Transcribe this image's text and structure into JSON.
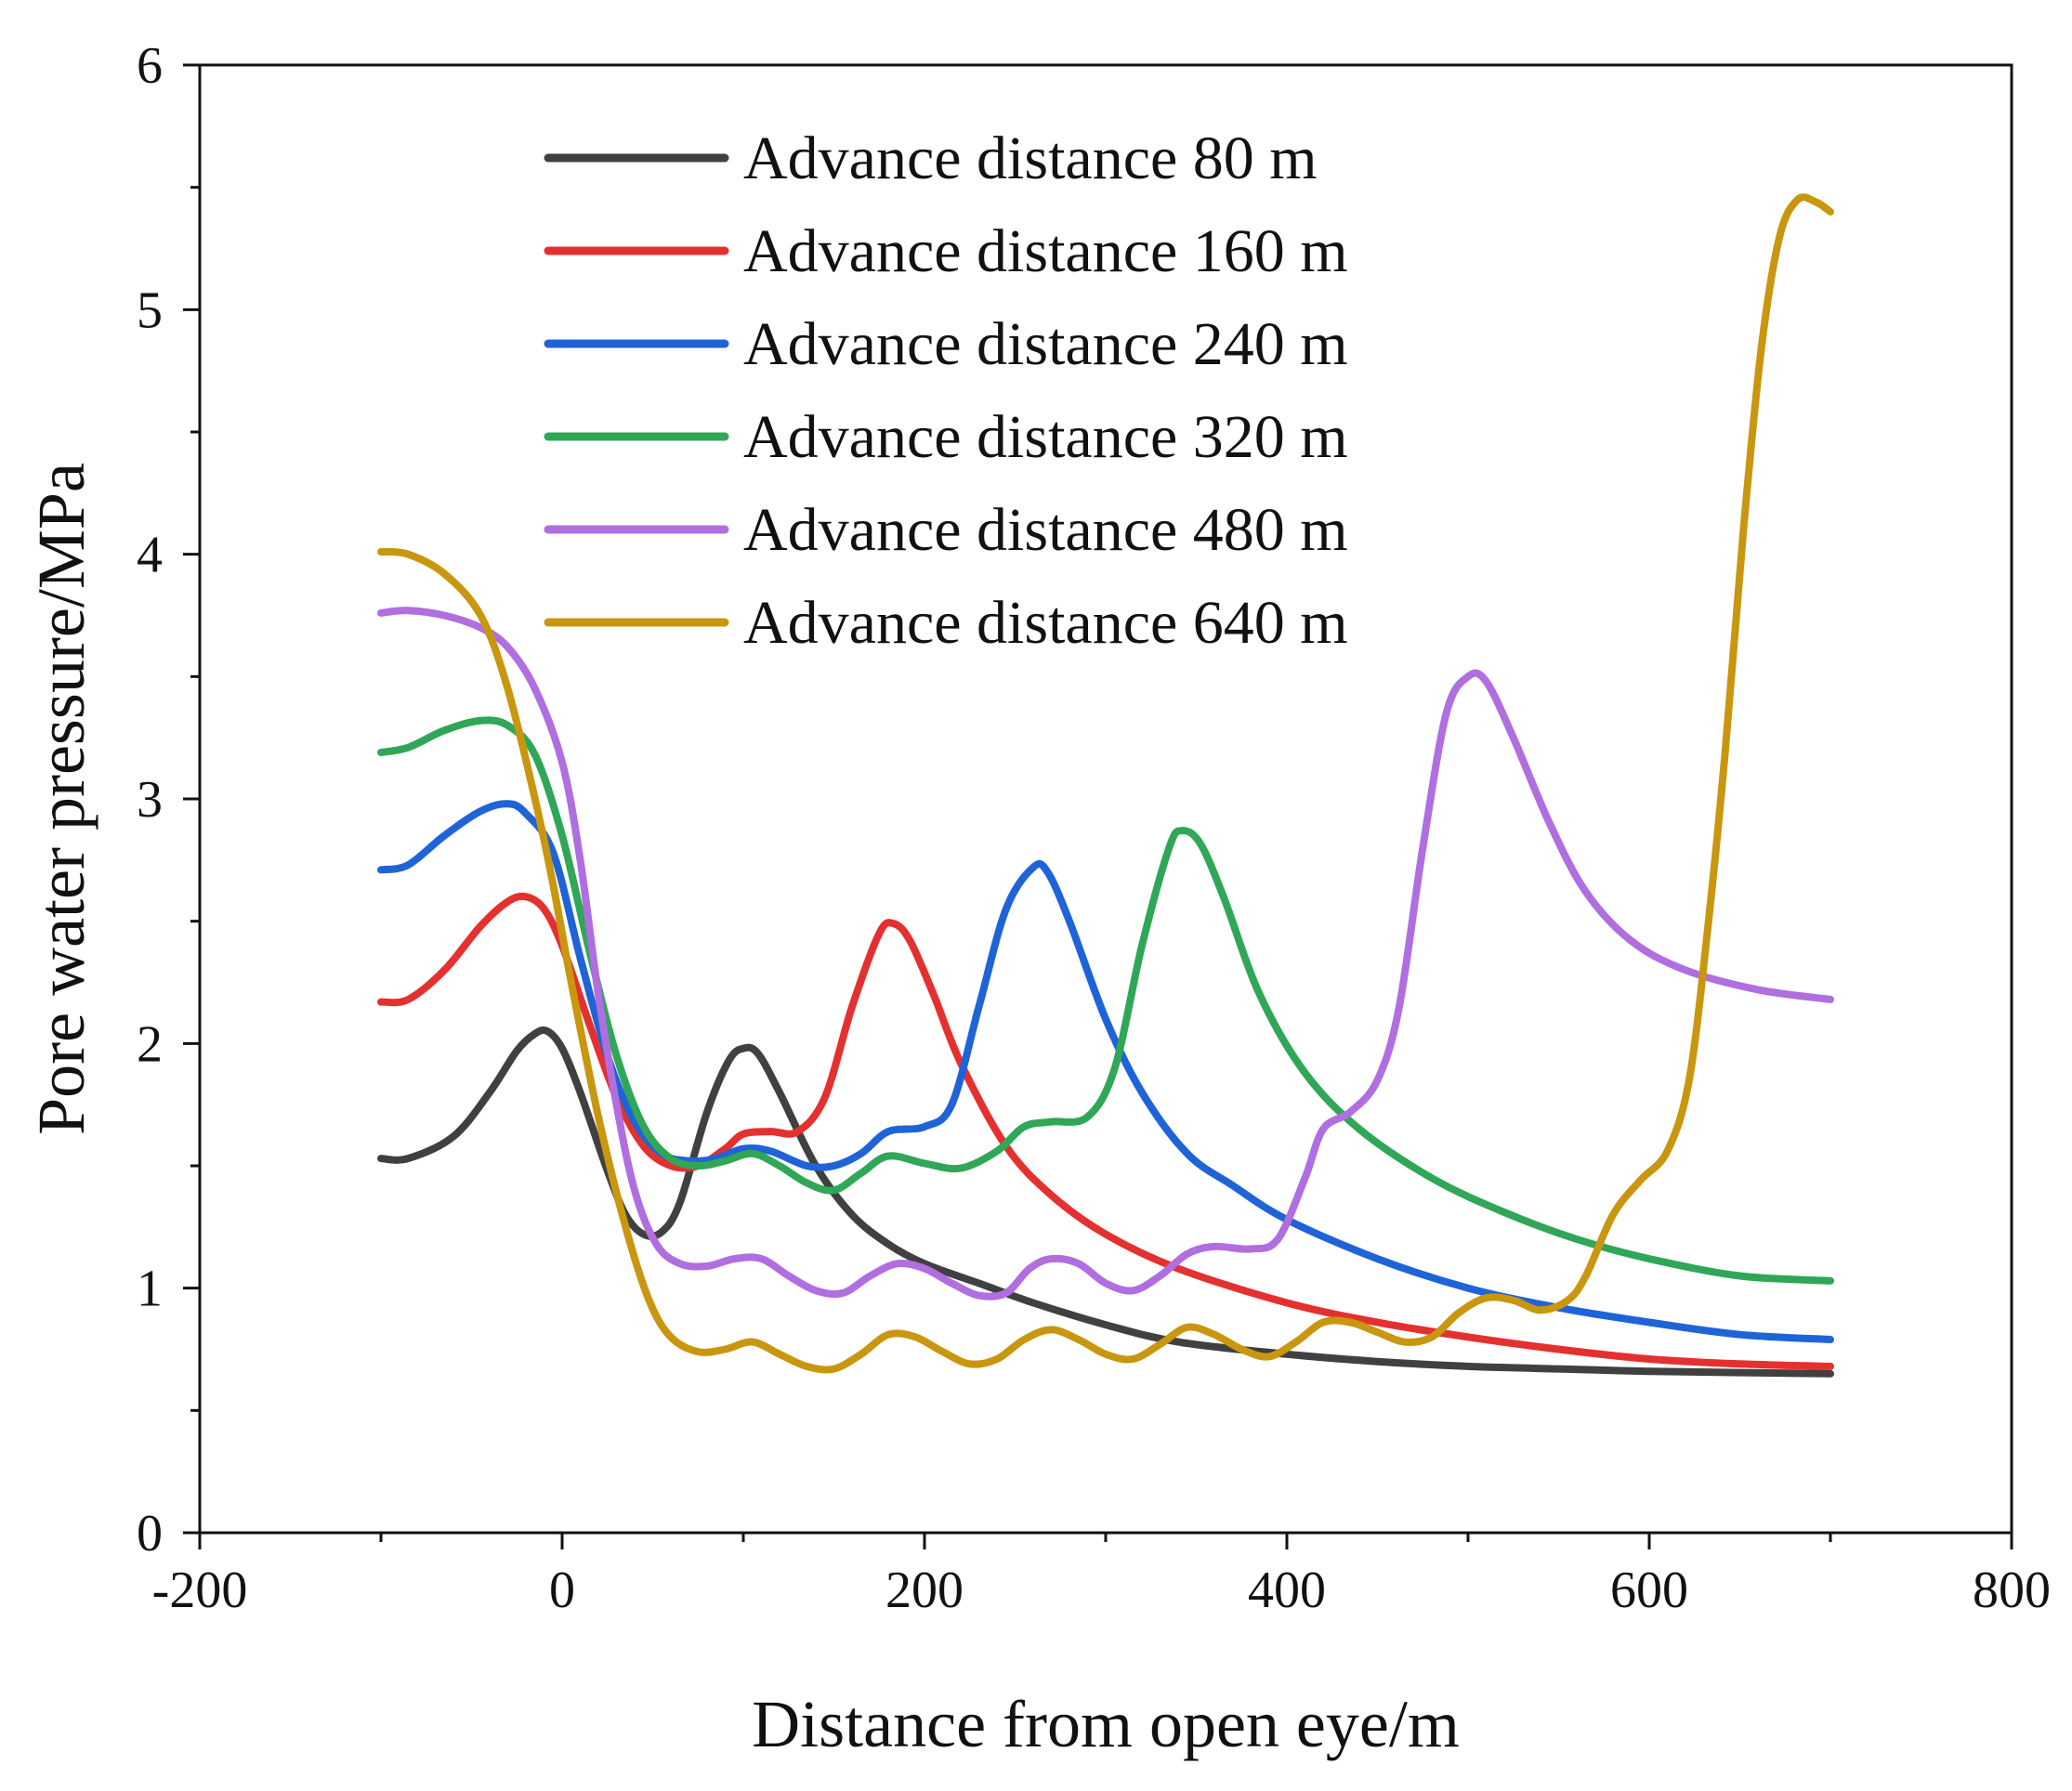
{
  "chart_data": {
    "type": "line",
    "title": "",
    "xlabel": "Distance from open eye/m",
    "ylabel": "Pore water pressure/MPa",
    "xlim": [
      -200,
      800
    ],
    "ylim": [
      0,
      6
    ],
    "xticks": [
      -200,
      0,
      200,
      400,
      600,
      800
    ],
    "yticks": [
      0,
      1,
      2,
      3,
      4,
      5,
      6
    ],
    "grid": false,
    "legend_position": "top-center",
    "series": [
      {
        "name": "Advance distance 80 m",
        "color": "#404040",
        "points": [
          [
            -100,
            1.53
          ],
          [
            -85,
            1.53
          ],
          [
            -60,
            1.62
          ],
          [
            -40,
            1.8
          ],
          [
            -25,
            1.97
          ],
          [
            -15,
            2.04
          ],
          [
            -8,
            2.05
          ],
          [
            0,
            1.98
          ],
          [
            10,
            1.8
          ],
          [
            25,
            1.48
          ],
          [
            35,
            1.3
          ],
          [
            45,
            1.22
          ],
          [
            55,
            1.23
          ],
          [
            65,
            1.35
          ],
          [
            80,
            1.72
          ],
          [
            92,
            1.93
          ],
          [
            100,
            1.98
          ],
          [
            108,
            1.96
          ],
          [
            120,
            1.8
          ],
          [
            140,
            1.5
          ],
          [
            160,
            1.3
          ],
          [
            180,
            1.18
          ],
          [
            200,
            1.1
          ],
          [
            230,
            1.02
          ],
          [
            260,
            0.94
          ],
          [
            300,
            0.85
          ],
          [
            340,
            0.78
          ],
          [
            400,
            0.73
          ],
          [
            450,
            0.7
          ],
          [
            500,
            0.68
          ],
          [
            550,
            0.67
          ],
          [
            600,
            0.66
          ],
          [
            700,
            0.65
          ]
        ]
      },
      {
        "name": "Advance distance 160 m",
        "color": "#e53030",
        "points": [
          [
            -100,
            2.17
          ],
          [
            -85,
            2.18
          ],
          [
            -65,
            2.3
          ],
          [
            -45,
            2.48
          ],
          [
            -30,
            2.58
          ],
          [
            -20,
            2.6
          ],
          [
            -10,
            2.55
          ],
          [
            0,
            2.4
          ],
          [
            15,
            2.08
          ],
          [
            30,
            1.78
          ],
          [
            45,
            1.58
          ],
          [
            60,
            1.5
          ],
          [
            75,
            1.5
          ],
          [
            90,
            1.57
          ],
          [
            100,
            1.63
          ],
          [
            115,
            1.64
          ],
          [
            130,
            1.64
          ],
          [
            145,
            1.78
          ],
          [
            160,
            2.15
          ],
          [
            175,
            2.45
          ],
          [
            183,
            2.49
          ],
          [
            192,
            2.42
          ],
          [
            205,
            2.2
          ],
          [
            220,
            1.92
          ],
          [
            245,
            1.58
          ],
          [
            270,
            1.38
          ],
          [
            300,
            1.22
          ],
          [
            340,
            1.08
          ],
          [
            400,
            0.94
          ],
          [
            450,
            0.86
          ],
          [
            500,
            0.8
          ],
          [
            550,
            0.75
          ],
          [
            600,
            0.71
          ],
          [
            650,
            0.69
          ],
          [
            700,
            0.68
          ]
        ]
      },
      {
        "name": "Advance distance 240 m",
        "color": "#1f63d8",
        "points": [
          [
            -100,
            2.71
          ],
          [
            -85,
            2.73
          ],
          [
            -65,
            2.85
          ],
          [
            -45,
            2.95
          ],
          [
            -30,
            2.98
          ],
          [
            -20,
            2.94
          ],
          [
            -5,
            2.78
          ],
          [
            10,
            2.35
          ],
          [
            25,
            1.95
          ],
          [
            40,
            1.68
          ],
          [
            55,
            1.55
          ],
          [
            70,
            1.52
          ],
          [
            85,
            1.53
          ],
          [
            100,
            1.57
          ],
          [
            115,
            1.56
          ],
          [
            135,
            1.5
          ],
          [
            150,
            1.5
          ],
          [
            165,
            1.55
          ],
          [
            180,
            1.64
          ],
          [
            200,
            1.66
          ],
          [
            215,
            1.75
          ],
          [
            230,
            2.15
          ],
          [
            245,
            2.55
          ],
          [
            260,
            2.72
          ],
          [
            268,
            2.7
          ],
          [
            280,
            2.5
          ],
          [
            300,
            2.1
          ],
          [
            320,
            1.8
          ],
          [
            345,
            1.55
          ],
          [
            370,
            1.42
          ],
          [
            400,
            1.28
          ],
          [
            450,
            1.12
          ],
          [
            500,
            1.0
          ],
          [
            550,
            0.92
          ],
          [
            600,
            0.86
          ],
          [
            650,
            0.81
          ],
          [
            700,
            0.79
          ]
        ]
      },
      {
        "name": "Advance distance 320 m",
        "color": "#2fa757",
        "points": [
          [
            -100,
            3.19
          ],
          [
            -85,
            3.21
          ],
          [
            -65,
            3.28
          ],
          [
            -45,
            3.32
          ],
          [
            -30,
            3.3
          ],
          [
            -15,
            3.18
          ],
          [
            0,
            2.85
          ],
          [
            15,
            2.38
          ],
          [
            30,
            1.95
          ],
          [
            45,
            1.66
          ],
          [
            60,
            1.53
          ],
          [
            75,
            1.5
          ],
          [
            90,
            1.52
          ],
          [
            105,
            1.55
          ],
          [
            120,
            1.5
          ],
          [
            135,
            1.43
          ],
          [
            150,
            1.4
          ],
          [
            165,
            1.47
          ],
          [
            180,
            1.54
          ],
          [
            200,
            1.51
          ],
          [
            220,
            1.49
          ],
          [
            240,
            1.56
          ],
          [
            255,
            1.66
          ],
          [
            270,
            1.68
          ],
          [
            290,
            1.7
          ],
          [
            305,
            1.9
          ],
          [
            320,
            2.4
          ],
          [
            335,
            2.8
          ],
          [
            342,
            2.87
          ],
          [
            352,
            2.82
          ],
          [
            365,
            2.6
          ],
          [
            385,
            2.2
          ],
          [
            410,
            1.88
          ],
          [
            440,
            1.65
          ],
          [
            480,
            1.45
          ],
          [
            520,
            1.31
          ],
          [
            560,
            1.2
          ],
          [
            600,
            1.12
          ],
          [
            650,
            1.05
          ],
          [
            700,
            1.03
          ]
        ]
      },
      {
        "name": "Advance distance 480 m",
        "color": "#b06ee0",
        "points": [
          [
            -100,
            3.76
          ],
          [
            -85,
            3.77
          ],
          [
            -65,
            3.75
          ],
          [
            -45,
            3.7
          ],
          [
            -30,
            3.62
          ],
          [
            -15,
            3.45
          ],
          [
            0,
            3.15
          ],
          [
            10,
            2.75
          ],
          [
            20,
            2.2
          ],
          [
            30,
            1.75
          ],
          [
            40,
            1.4
          ],
          [
            52,
            1.18
          ],
          [
            65,
            1.1
          ],
          [
            80,
            1.09
          ],
          [
            95,
            1.12
          ],
          [
            110,
            1.12
          ],
          [
            125,
            1.05
          ],
          [
            140,
            0.99
          ],
          [
            155,
            0.98
          ],
          [
            170,
            1.05
          ],
          [
            185,
            1.1
          ],
          [
            200,
            1.08
          ],
          [
            215,
            1.02
          ],
          [
            230,
            0.97
          ],
          [
            245,
            0.98
          ],
          [
            258,
            1.08
          ],
          [
            270,
            1.12
          ],
          [
            285,
            1.1
          ],
          [
            300,
            1.02
          ],
          [
            315,
            0.99
          ],
          [
            330,
            1.05
          ],
          [
            345,
            1.14
          ],
          [
            360,
            1.17
          ],
          [
            380,
            1.16
          ],
          [
            395,
            1.2
          ],
          [
            410,
            1.45
          ],
          [
            420,
            1.65
          ],
          [
            435,
            1.72
          ],
          [
            450,
            1.85
          ],
          [
            462,
            2.15
          ],
          [
            475,
            2.8
          ],
          [
            488,
            3.35
          ],
          [
            500,
            3.5
          ],
          [
            510,
            3.48
          ],
          [
            525,
            3.25
          ],
          [
            545,
            2.9
          ],
          [
            565,
            2.62
          ],
          [
            590,
            2.42
          ],
          [
            620,
            2.3
          ],
          [
            660,
            2.22
          ],
          [
            700,
            2.18
          ]
        ]
      },
      {
        "name": "Advance distance 640 m",
        "color": "#c8970f",
        "points": [
          [
            -100,
            4.01
          ],
          [
            -85,
            4.0
          ],
          [
            -65,
            3.92
          ],
          [
            -45,
            3.75
          ],
          [
            -30,
            3.45
          ],
          [
            -15,
            3.0
          ],
          [
            -5,
            2.65
          ],
          [
            5,
            2.25
          ],
          [
            20,
            1.7
          ],
          [
            35,
            1.25
          ],
          [
            48,
            0.95
          ],
          [
            60,
            0.8
          ],
          [
            75,
            0.74
          ],
          [
            90,
            0.75
          ],
          [
            105,
            0.78
          ],
          [
            120,
            0.73
          ],
          [
            135,
            0.68
          ],
          [
            150,
            0.67
          ],
          [
            165,
            0.73
          ],
          [
            180,
            0.81
          ],
          [
            195,
            0.8
          ],
          [
            210,
            0.74
          ],
          [
            225,
            0.69
          ],
          [
            240,
            0.71
          ],
          [
            255,
            0.79
          ],
          [
            270,
            0.83
          ],
          [
            285,
            0.79
          ],
          [
            300,
            0.73
          ],
          [
            315,
            0.71
          ],
          [
            330,
            0.77
          ],
          [
            345,
            0.84
          ],
          [
            360,
            0.81
          ],
          [
            375,
            0.75
          ],
          [
            390,
            0.72
          ],
          [
            405,
            0.78
          ],
          [
            420,
            0.86
          ],
          [
            435,
            0.86
          ],
          [
            450,
            0.82
          ],
          [
            465,
            0.78
          ],
          [
            480,
            0.8
          ],
          [
            495,
            0.9
          ],
          [
            510,
            0.96
          ],
          [
            525,
            0.95
          ],
          [
            540,
            0.91
          ],
          [
            555,
            0.95
          ],
          [
            565,
            1.05
          ],
          [
            580,
            1.3
          ],
          [
            595,
            1.44
          ],
          [
            610,
            1.56
          ],
          [
            622,
            1.85
          ],
          [
            632,
            2.45
          ],
          [
            642,
            3.2
          ],
          [
            652,
            4.1
          ],
          [
            662,
            4.85
          ],
          [
            672,
            5.3
          ],
          [
            682,
            5.45
          ],
          [
            692,
            5.44
          ],
          [
            700,
            5.4
          ]
        ]
      }
    ]
  }
}
